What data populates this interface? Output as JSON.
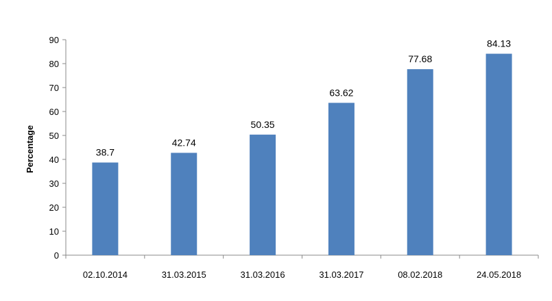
{
  "chart_data": {
    "type": "bar",
    "title": "",
    "xlabel": "",
    "ylabel": "Percentage",
    "categories": [
      "02.10.2014",
      "31.03.2015",
      "31.03.2016",
      "31.03.2017",
      "08.02.2018",
      "24.05.2018"
    ],
    "values": [
      38.7,
      42.74,
      50.35,
      63.62,
      77.68,
      84.13
    ],
    "data_labels": [
      "38.7",
      "42.74",
      "50.35",
      "63.62",
      "77.68",
      "84.13"
    ],
    "ylim": [
      0,
      90
    ],
    "yticks": [
      0,
      10,
      20,
      30,
      40,
      50,
      60,
      70,
      80,
      90
    ],
    "grid": false,
    "legend": "none",
    "bar_color": "#4f81bd"
  }
}
